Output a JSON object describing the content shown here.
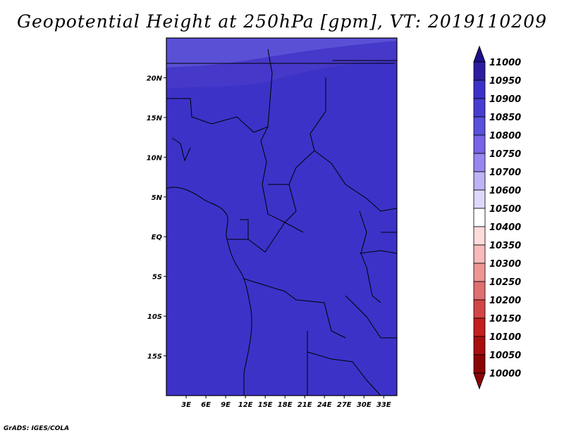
{
  "title": "Geopotential Height at 250hPa [gpm], VT: 2019110209",
  "footer": "GrADS: IGES/COLA",
  "map": {
    "lon_range": [
      0,
      35
    ],
    "lat_range": [
      -20,
      25
    ],
    "lon_ticks": [
      {
        "value": 3,
        "label": "3E"
      },
      {
        "value": 6,
        "label": "6E"
      },
      {
        "value": 9,
        "label": "9E"
      },
      {
        "value": 12,
        "label": "12E"
      },
      {
        "value": 15,
        "label": "15E"
      },
      {
        "value": 18,
        "label": "18E"
      },
      {
        "value": 21,
        "label": "21E"
      },
      {
        "value": 24,
        "label": "24E"
      },
      {
        "value": 27,
        "label": "27E"
      },
      {
        "value": 30,
        "label": "30E"
      },
      {
        "value": 33,
        "label": "33E"
      }
    ],
    "lat_ticks": [
      {
        "value": 20,
        "label": "20N"
      },
      {
        "value": 15,
        "label": "15N"
      },
      {
        "value": 10,
        "label": "10N"
      },
      {
        "value": 5,
        "label": "5N"
      },
      {
        "value": 0,
        "label": "EQ"
      },
      {
        "value": -5,
        "label": "5S"
      },
      {
        "value": -10,
        "label": "10S"
      },
      {
        "value": -15,
        "label": "15S"
      }
    ],
    "field_colors": {
      "base": "#3c32c8",
      "band_10900": "#4638c8",
      "band_10850": "#5a50d6"
    }
  },
  "colorbar": {
    "levels": [
      "11000",
      "10950",
      "10900",
      "10850",
      "10800",
      "10750",
      "10700",
      "10600",
      "10500",
      "10400",
      "10350",
      "10300",
      "10250",
      "10200",
      "10150",
      "10100",
      "10050",
      "10000"
    ],
    "colors": [
      "#1e0f8c",
      "#2a1ea0",
      "#3c32c8",
      "#4a3cd2",
      "#5a50dc",
      "#7864e6",
      "#9688f0",
      "#bcb4f4",
      "#dcdaf8",
      "#ffffff",
      "#fcdcdc",
      "#f8baba",
      "#ee9696",
      "#e07070",
      "#d24646",
      "#c41e1e",
      "#a80f0f",
      "#8c0505"
    ]
  }
}
